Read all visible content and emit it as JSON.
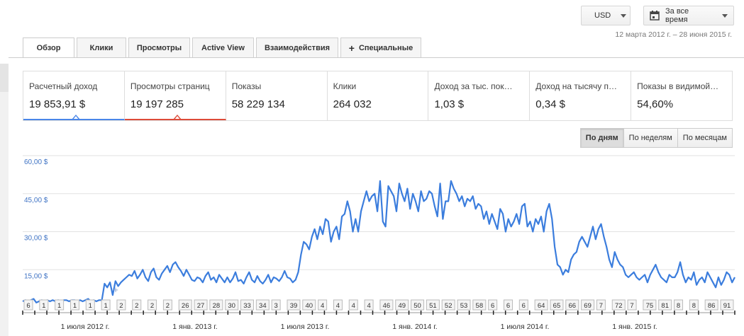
{
  "header": {
    "currency": "USD",
    "range_label": "За все время",
    "date_range": "12 марта 2012 г. – 28 июня 2015 г."
  },
  "tabs": [
    {
      "label": "Обзор",
      "active": true
    },
    {
      "label": "Клики",
      "active": false
    },
    {
      "label": "Просмотры",
      "active": false
    },
    {
      "label": "Active View",
      "active": false
    },
    {
      "label": "Взаимодействия",
      "active": false
    },
    {
      "label": "Специальные",
      "active": false,
      "icon": "plus"
    }
  ],
  "metrics": [
    {
      "label": "Расчетный доход",
      "value": "19 853,91 $",
      "selected": "blue"
    },
    {
      "label": "Просмотры страниц",
      "value": "19 197 285",
      "selected": "red"
    },
    {
      "label": "Показы",
      "value": "58 229 134"
    },
    {
      "label": "Клики",
      "value": "264 032"
    },
    {
      "label": "Доход за тыс. пок…",
      "value": "1,03 $"
    },
    {
      "label": "Доход на тысячу п…",
      "value": "0,34 $"
    },
    {
      "label": "Показы в видимой…",
      "value": "54,60%"
    }
  ],
  "granularity": [
    {
      "label": "По дням",
      "active": true
    },
    {
      "label": "По неделям",
      "active": false
    },
    {
      "label": "По месяцам",
      "active": false
    }
  ],
  "colors": {
    "series": "#3b7ddd",
    "gridline": "#e2e2e2",
    "axis_label": "#3f73c4"
  },
  "chart_data": {
    "type": "line",
    "ylim": [
      0,
      60
    ],
    "y_ticks": [
      "15,00 $",
      "30,00 $",
      "45,00 $",
      "60,00 $"
    ],
    "x_labels": [
      "1 июля 2012 г.",
      "1 янв. 2013 г.",
      "1 июля 2013 г.",
      "1 янв. 2014 г.",
      "1 июля 2014 г.",
      "1 янв. 2015 г."
    ],
    "annotations": [
      "6",
      "1",
      "1",
      "1",
      "1",
      "1",
      "2",
      "2",
      "2",
      "2",
      "26",
      "27",
      "28",
      "30",
      "33",
      "34",
      "3",
      "39",
      "40",
      "4",
      "4",
      "4",
      "4",
      "46",
      "49",
      "50",
      "51",
      "52",
      "53",
      "58",
      "6",
      "6",
      "6",
      "64",
      "65",
      "66",
      "69",
      "7",
      "72",
      "7",
      "75",
      "81",
      "8",
      "8",
      "86",
      "91"
    ],
    "series": [
      {
        "values": [
          2.5,
          3,
          2.5,
          3,
          3.5,
          2,
          2.5,
          3,
          2.5,
          3,
          2.5,
          3,
          2.5,
          3,
          2.5,
          3,
          3,
          2.5,
          3,
          3,
          2.5,
          3,
          2.5,
          3,
          3.5,
          2.5,
          3,
          2.5,
          3,
          3,
          9.5,
          8,
          10,
          5,
          10.5,
          8.5,
          10,
          11,
          12,
          13,
          12.5,
          14.5,
          11.5,
          13,
          15,
          12,
          10.5,
          14,
          15.5,
          12,
          11,
          13.5,
          15,
          16.5,
          14,
          17,
          18,
          16,
          14.5,
          12.5,
          15,
          13,
          11,
          10.5,
          12,
          11.5,
          10,
          12.5,
          14,
          11,
          12,
          10,
          13,
          11.5,
          10,
          12,
          10,
          11.5,
          14,
          10.5,
          11,
          9.5,
          12,
          14,
          11,
          10,
          12.5,
          10.5,
          9.5,
          11,
          13,
          10,
          12,
          11.5,
          10.5,
          12,
          14.5,
          12,
          11.5,
          10,
          11,
          14,
          21,
          26,
          25,
          23,
          28,
          31,
          27,
          32,
          29,
          35,
          34,
          26,
          30,
          32,
          27,
          36,
          37,
          42,
          38,
          30,
          35,
          30,
          38,
          42,
          46,
          42,
          44,
          45,
          38,
          50,
          34,
          32,
          48,
          46,
          44,
          38,
          49,
          45,
          42,
          47,
          39,
          45,
          42,
          38,
          46,
          42,
          43,
          46,
          45,
          40,
          36,
          49,
          35,
          42,
          42,
          50,
          47,
          45,
          42,
          44,
          40,
          43,
          42,
          44,
          39,
          41,
          40,
          35,
          38,
          33,
          37,
          34,
          31,
          39,
          37,
          30,
          35,
          32,
          34,
          37,
          33,
          40,
          41,
          32,
          34,
          30,
          35,
          33,
          36,
          30,
          38,
          41,
          35,
          24,
          17,
          16,
          13,
          15,
          14,
          19,
          21,
          22,
          26,
          28,
          26,
          24,
          28,
          32,
          27,
          31,
          33,
          28,
          24,
          19,
          16,
          22,
          19,
          17,
          16,
          13,
          12,
          13,
          14,
          12,
          11,
          12,
          13,
          10,
          13,
          15,
          17,
          14,
          12,
          11,
          10,
          13,
          12,
          12,
          14,
          18,
          13,
          10,
          12,
          11,
          14,
          9,
          11,
          12,
          10,
          14,
          12,
          10,
          8,
          12,
          9,
          11,
          14,
          13,
          10,
          12
        ]
      }
    ]
  }
}
